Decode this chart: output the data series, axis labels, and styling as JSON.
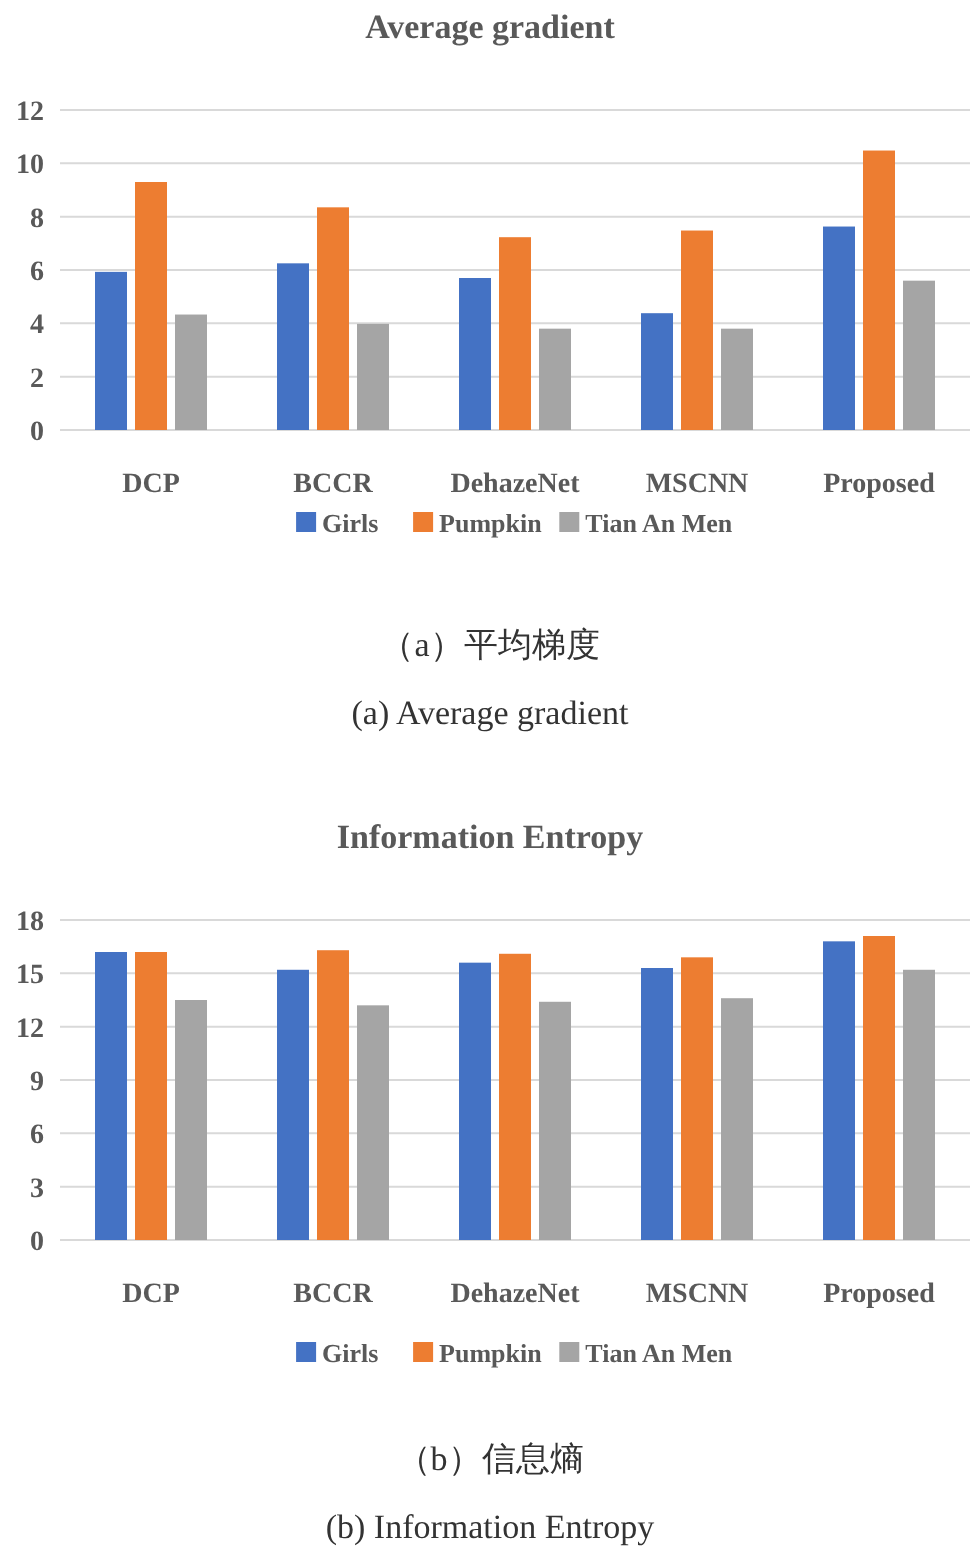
{
  "chart_data": [
    {
      "type": "bar",
      "title": "Average gradient",
      "categories": [
        "DCP",
        "BCCR",
        "DehazeNet",
        "MSCNN",
        "Proposed"
      ],
      "series": [
        {
          "name": "Girls",
          "color": "#4472c4",
          "values": [
            5.93,
            6.25,
            5.7,
            4.38,
            7.63
          ]
        },
        {
          "name": "Pumpkin",
          "color": "#ed7d31",
          "values": [
            9.3,
            8.35,
            7.23,
            7.48,
            10.48
          ]
        },
        {
          "name": "Tian An Men",
          "color": "#a5a5a5",
          "values": [
            4.33,
            3.98,
            3.8,
            3.8,
            5.6
          ]
        }
      ],
      "ylim": [
        0,
        12
      ],
      "yticks": [
        0,
        2,
        4,
        6,
        8,
        10,
        12
      ],
      "grid": "y",
      "legend": "bottom",
      "annotations": [
        "（a）平均梯度",
        "(a) Average gradient"
      ]
    },
    {
      "type": "bar",
      "title": "Information Entropy",
      "categories": [
        "DCP",
        "BCCR",
        "DehazeNet",
        "MSCNN",
        "Proposed"
      ],
      "series": [
        {
          "name": "Girls",
          "color": "#4472c4",
          "values": [
            16.2,
            15.2,
            15.6,
            15.3,
            16.8
          ]
        },
        {
          "name": "Pumpkin",
          "color": "#ed7d31",
          "values": [
            16.2,
            16.3,
            16.1,
            15.9,
            17.1
          ]
        },
        {
          "name": "Tian An Men",
          "color": "#a5a5a5",
          "values": [
            13.5,
            13.2,
            13.4,
            13.6,
            15.2
          ]
        }
      ],
      "ylim": [
        0,
        18
      ],
      "yticks": [
        0,
        3,
        6,
        9,
        12,
        15,
        18
      ],
      "grid": "y",
      "legend": "bottom",
      "annotations": [
        "（b）信息熵",
        "(b) Information Entropy"
      ]
    }
  ]
}
